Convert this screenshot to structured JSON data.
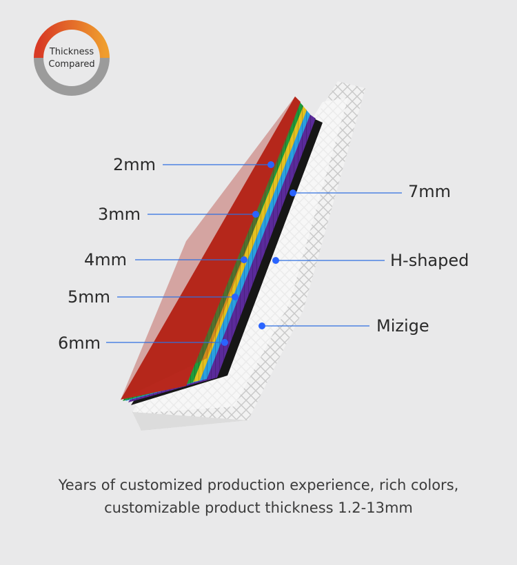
{
  "badge": {
    "line1": "Thickness",
    "line2": "Compared"
  },
  "labels": {
    "mm2": "2mm",
    "mm3": "3mm",
    "mm4": "4mm",
    "mm5": "5mm",
    "mm6": "6mm",
    "mm7": "7mm",
    "h_shaped": "H-shaped",
    "mizige": "Mizige"
  },
  "caption": {
    "line1": "Years of customized production experience, rich colors,",
    "line2": "customizable product thickness 1.2-13mm"
  },
  "colors": {
    "background": "#e9e9ea",
    "ring_orange": "#e98a2c",
    "ring_red": "#d83a25",
    "ring_gray": "#9a9a9a",
    "sheet_red": "#b8281d",
    "sheet_green": "#1f9a3a",
    "sheet_yellow": "#e3c020",
    "sheet_blue": "#2a9fe0",
    "sheet_purple": "#5a2a9a",
    "sheet_black": "#161616",
    "sheet_white": "#f4f4f4",
    "leader_line": "#2f6fe0",
    "leader_dot": "#2a64ff"
  }
}
